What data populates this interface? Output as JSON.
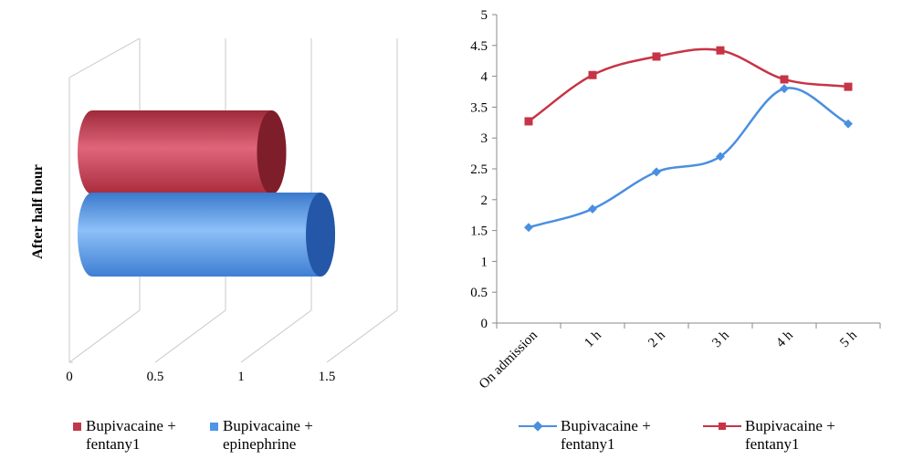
{
  "colors": {
    "red": "#c0394b",
    "blue": "#4f94e8",
    "red_line": "#c73445",
    "blue_line": "#4a8fe0",
    "grid": "#c8c8c8"
  },
  "chart_data": [
    {
      "type": "bar",
      "orientation": "horizontal",
      "style": "3d-cylinder",
      "title": "",
      "ylabel": "After half hour",
      "xlim": [
        0,
        1.5
      ],
      "x_ticks": [
        "0",
        "0.5",
        "1",
        "1.5"
      ],
      "categories": [
        "After half hour"
      ],
      "series": [
        {
          "name": "Bupivacaine + fentany1",
          "values": [
            1.1
          ],
          "color": "#c0394b"
        },
        {
          "name": "Bupivacaine + epinephrine",
          "values": [
            1.4
          ],
          "color": "#4f94e8"
        }
      ],
      "legend_position": "bottom"
    },
    {
      "type": "line",
      "title": "",
      "categories": [
        "On admission",
        "1 h",
        "2 h",
        "3 h",
        "4 h",
        "5 h"
      ],
      "ylim": [
        0,
        5
      ],
      "y_ticks": [
        "0",
        "0.5",
        "1",
        "1.5",
        "2",
        "2.5",
        "3",
        "3.5",
        "4",
        "4.5",
        "5"
      ],
      "series": [
        {
          "name": "Bupivacaine + fentany1",
          "marker": "diamond",
          "color": "#4a8fe0",
          "values": [
            1.55,
            1.85,
            2.45,
            2.7,
            3.8,
            3.23
          ]
        },
        {
          "name": "Bupivacaine + fentany1",
          "marker": "square",
          "color": "#c73445",
          "values": [
            3.27,
            4.02,
            4.32,
            4.42,
            3.95,
            3.83
          ]
        }
      ],
      "legend_position": "bottom",
      "grid": false
    }
  ]
}
